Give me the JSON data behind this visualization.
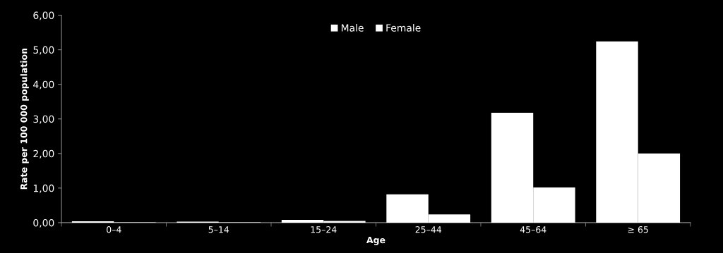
{
  "chart_data": {
    "type": "bar",
    "xlabel": "Age",
    "ylabel": "Rate per 100 000 population",
    "categories": [
      "0–4",
      "5–14",
      "15–24",
      "25–44",
      "45–64",
      "≥ 65"
    ],
    "series": [
      {
        "name": "Male",
        "color": "#ffffff",
        "values": [
          0.04,
          0.03,
          0.08,
          0.82,
          3.18,
          5.24
        ]
      },
      {
        "name": "Female",
        "color": "#ffffff",
        "values": [
          0.01,
          0.01,
          0.05,
          0.24,
          1.02,
          2.0
        ]
      }
    ],
    "ylim": [
      0,
      6
    ],
    "yticks": [
      {
        "value": 0,
        "label": "0,00"
      },
      {
        "value": 1,
        "label": "1,00"
      },
      {
        "value": 2,
        "label": "2,00"
      },
      {
        "value": 3,
        "label": "3,00"
      },
      {
        "value": 4,
        "label": "4,00"
      },
      {
        "value": 5,
        "label": "5,00"
      },
      {
        "value": 6,
        "label": "6,00"
      }
    ],
    "grid": false,
    "legend": "top"
  }
}
